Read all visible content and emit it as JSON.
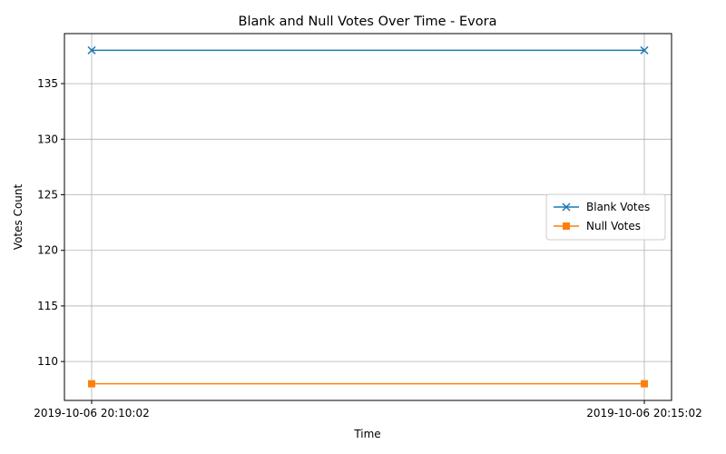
{
  "chart_data": {
    "type": "line",
    "title": "Blank and Null Votes Over Time - Evora",
    "xlabel": "Time",
    "ylabel": "Votes Count",
    "categories": [
      "2019-10-06 20:10:02",
      "2019-10-06 20:15:02"
    ],
    "series": [
      {
        "name": "Blank Votes",
        "values": [
          138,
          138
        ],
        "color": "#1f77b4",
        "marker": "x"
      },
      {
        "name": "Null Votes",
        "values": [
          108,
          108
        ],
        "color": "#ff7f0e",
        "marker": "square"
      }
    ],
    "ylim": [
      106.5,
      139.5
    ],
    "yticks": [
      110,
      115,
      120,
      125,
      130,
      135
    ],
    "grid": true,
    "legend": "center-right"
  }
}
